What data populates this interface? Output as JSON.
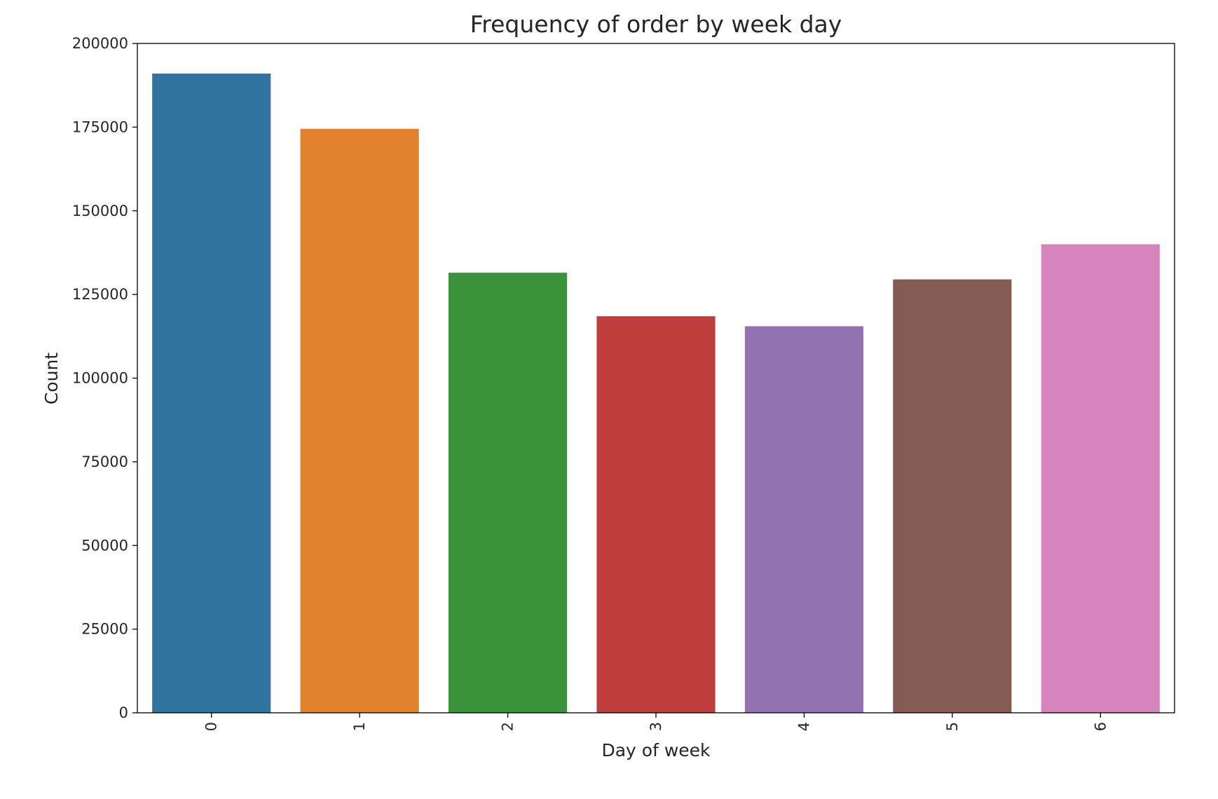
{
  "chart_data": {
    "type": "bar",
    "title": "Frequency of order by week day",
    "xlabel": "Day of week",
    "ylabel": "Count",
    "categories": [
      "0",
      "1",
      "2",
      "3",
      "4",
      "5",
      "6"
    ],
    "values": [
      191000,
      174500,
      131500,
      118500,
      115500,
      129500,
      140000
    ],
    "colors": [
      "#3274a1",
      "#e1812c",
      "#3a923a",
      "#c03d3e",
      "#9372b2",
      "#845b53",
      "#d684bd"
    ],
    "ylim": [
      0,
      200000
    ],
    "yticks": [
      0,
      25000,
      50000,
      75000,
      100000,
      125000,
      150000,
      175000,
      200000
    ],
    "x_tick_rotation": "vertical",
    "grid": false,
    "legend": "none"
  }
}
